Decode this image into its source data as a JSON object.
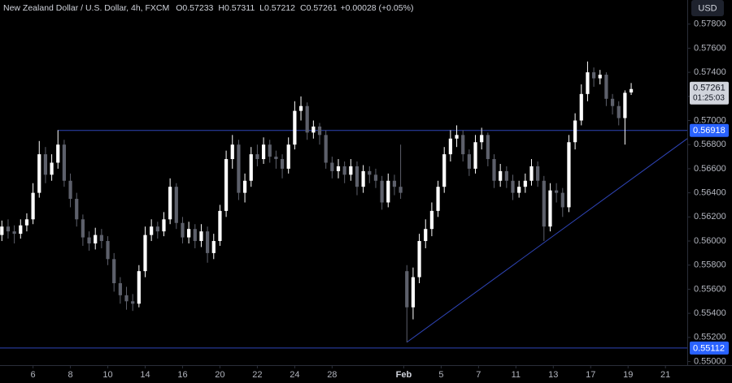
{
  "chart_data": {
    "type": "candlestick",
    "header": {
      "symbol": "New Zealand Dollar / U.S. Dollar, 4h, FXCM",
      "ohlc_keys": [
        "O",
        "H",
        "L",
        "C"
      ],
      "change": "+0.00028 (+0.05%)"
    },
    "currency": "USD",
    "countdown": "01:25:03",
    "up_color": "#ffffff",
    "down_color": "#5d606b",
    "level_color": "#2f45b8",
    "tag_color": "#2962ff",
    "xlim": [
      -0.3,
      110
    ],
    "ylim": [
      0.5497,
      0.58
    ],
    "yticks": [
      {
        "value": 0.55,
        "label": "0.55000"
      },
      {
        "value": 0.552,
        "label": "0.55200"
      },
      {
        "value": 0.554,
        "label": "0.55400"
      },
      {
        "value": 0.556,
        "label": "0.55600"
      },
      {
        "value": 0.558,
        "label": "0.55800"
      },
      {
        "value": 0.56,
        "label": "0.56000"
      },
      {
        "value": 0.562,
        "label": "0.56200"
      },
      {
        "value": 0.564,
        "label": "0.56400"
      },
      {
        "value": 0.566,
        "label": "0.56600"
      },
      {
        "value": 0.568,
        "label": "0.56800"
      },
      {
        "value": 0.57,
        "label": "0.57000"
      },
      {
        "value": 0.572,
        "label": "0.57200"
      },
      {
        "value": 0.574,
        "label": "0.57400"
      },
      {
        "value": 0.576,
        "label": "0.57600"
      },
      {
        "value": 0.578,
        "label": "0.57800"
      }
    ],
    "xticks": [
      {
        "value": 5,
        "label": "6"
      },
      {
        "value": 11,
        "label": "8"
      },
      {
        "value": 17,
        "label": "10"
      },
      {
        "value": 23,
        "label": "14"
      },
      {
        "value": 29,
        "label": "16"
      },
      {
        "value": 35,
        "label": "20"
      },
      {
        "value": 41,
        "label": "22"
      },
      {
        "value": 47,
        "label": "24"
      },
      {
        "value": 53,
        "label": "28"
      },
      {
        "value": 64.5,
        "label": "Feb"
      },
      {
        "value": 70.5,
        "label": "5"
      },
      {
        "value": 76.5,
        "label": "7"
      },
      {
        "value": 82.5,
        "label": "11"
      },
      {
        "value": 88.5,
        "label": "13"
      },
      {
        "value": 94.5,
        "label": "17"
      },
      {
        "value": 100.5,
        "label": "19"
      },
      {
        "value": 106.5,
        "label": "21"
      }
    ],
    "levels": [
      {
        "value": 0.56918,
        "from": 9
      },
      {
        "value": 0.55112,
        "from": -0.3
      }
    ],
    "trendline": {
      "x": [
        65,
        110
      ],
      "y": [
        0.5516,
        0.5685
      ]
    },
    "candles": [
      {
        "o": 0.5605,
        "h": 0.5617,
        "l": 0.56,
        "c": 0.5612
      },
      {
        "o": 0.5612,
        "h": 0.5618,
        "l": 0.5602,
        "c": 0.5608
      },
      {
        "o": 0.5608,
        "h": 0.5613,
        "l": 0.5598,
        "c": 0.5606
      },
      {
        "o": 0.5606,
        "h": 0.5618,
        "l": 0.5602,
        "c": 0.5613
      },
      {
        "o": 0.5613,
        "h": 0.5623,
        "l": 0.5608,
        "c": 0.5618
      },
      {
        "o": 0.5618,
        "h": 0.5648,
        "l": 0.5614,
        "c": 0.564
      },
      {
        "o": 0.564,
        "h": 0.5683,
        "l": 0.5636,
        "c": 0.5672
      },
      {
        "o": 0.5672,
        "h": 0.5678,
        "l": 0.5648,
        "c": 0.5655
      },
      {
        "o": 0.5655,
        "h": 0.5672,
        "l": 0.565,
        "c": 0.5665
      },
      {
        "o": 0.5665,
        "h": 0.5692,
        "l": 0.566,
        "c": 0.568
      },
      {
        "o": 0.568,
        "h": 0.5684,
        "l": 0.5645,
        "c": 0.565
      },
      {
        "o": 0.565,
        "h": 0.5656,
        "l": 0.5628,
        "c": 0.5635
      },
      {
        "o": 0.5635,
        "h": 0.564,
        "l": 0.5612,
        "c": 0.5618
      },
      {
        "o": 0.5618,
        "h": 0.5622,
        "l": 0.5596,
        "c": 0.5603
      },
      {
        "o": 0.5603,
        "h": 0.5608,
        "l": 0.5592,
        "c": 0.5598
      },
      {
        "o": 0.5598,
        "h": 0.5611,
        "l": 0.5593,
        "c": 0.5605
      },
      {
        "o": 0.5605,
        "h": 0.561,
        "l": 0.5594,
        "c": 0.56
      },
      {
        "o": 0.56,
        "h": 0.5604,
        "l": 0.558,
        "c": 0.5585
      },
      {
        "o": 0.5585,
        "h": 0.559,
        "l": 0.5558,
        "c": 0.5565
      },
      {
        "o": 0.5565,
        "h": 0.557,
        "l": 0.5548,
        "c": 0.5555
      },
      {
        "o": 0.5555,
        "h": 0.5562,
        "l": 0.5543,
        "c": 0.555
      },
      {
        "o": 0.555,
        "h": 0.5556,
        "l": 0.5542,
        "c": 0.5548
      },
      {
        "o": 0.5548,
        "h": 0.558,
        "l": 0.5545,
        "c": 0.5575
      },
      {
        "o": 0.5575,
        "h": 0.5612,
        "l": 0.557,
        "c": 0.5605
      },
      {
        "o": 0.5605,
        "h": 0.5618,
        "l": 0.56,
        "c": 0.5612
      },
      {
        "o": 0.5612,
        "h": 0.5616,
        "l": 0.5602,
        "c": 0.5608
      },
      {
        "o": 0.5608,
        "h": 0.5624,
        "l": 0.5604,
        "c": 0.5618
      },
      {
        "o": 0.5618,
        "h": 0.5652,
        "l": 0.5614,
        "c": 0.5645
      },
      {
        "o": 0.5645,
        "h": 0.5648,
        "l": 0.561,
        "c": 0.5615
      },
      {
        "o": 0.5615,
        "h": 0.562,
        "l": 0.5598,
        "c": 0.5603
      },
      {
        "o": 0.5603,
        "h": 0.5616,
        "l": 0.5598,
        "c": 0.561
      },
      {
        "o": 0.561,
        "h": 0.5614,
        "l": 0.5594,
        "c": 0.56
      },
      {
        "o": 0.56,
        "h": 0.5614,
        "l": 0.5595,
        "c": 0.5608
      },
      {
        "o": 0.5608,
        "h": 0.5612,
        "l": 0.5582,
        "c": 0.559
      },
      {
        "o": 0.559,
        "h": 0.5606,
        "l": 0.5585,
        "c": 0.56
      },
      {
        "o": 0.56,
        "h": 0.563,
        "l": 0.5596,
        "c": 0.5625
      },
      {
        "o": 0.5625,
        "h": 0.5675,
        "l": 0.562,
        "c": 0.5668
      },
      {
        "o": 0.5668,
        "h": 0.5688,
        "l": 0.566,
        "c": 0.568
      },
      {
        "o": 0.568,
        "h": 0.5684,
        "l": 0.5634,
        "c": 0.564
      },
      {
        "o": 0.564,
        "h": 0.5656,
        "l": 0.5632,
        "c": 0.565
      },
      {
        "o": 0.565,
        "h": 0.5678,
        "l": 0.5645,
        "c": 0.5672
      },
      {
        "o": 0.5672,
        "h": 0.568,
        "l": 0.5662,
        "c": 0.5668
      },
      {
        "o": 0.5668,
        "h": 0.5686,
        "l": 0.5664,
        "c": 0.568
      },
      {
        "o": 0.568,
        "h": 0.5684,
        "l": 0.5665,
        "c": 0.567
      },
      {
        "o": 0.567,
        "h": 0.5675,
        "l": 0.566,
        "c": 0.5668
      },
      {
        "o": 0.5668,
        "h": 0.5672,
        "l": 0.5652,
        "c": 0.566
      },
      {
        "o": 0.566,
        "h": 0.5686,
        "l": 0.5656,
        "c": 0.568
      },
      {
        "o": 0.568,
        "h": 0.5716,
        "l": 0.5676,
        "c": 0.5708
      },
      {
        "o": 0.5708,
        "h": 0.572,
        "l": 0.57,
        "c": 0.5712
      },
      {
        "o": 0.5712,
        "h": 0.5715,
        "l": 0.5684,
        "c": 0.569
      },
      {
        "o": 0.569,
        "h": 0.57,
        "l": 0.5685,
        "c": 0.5695
      },
      {
        "o": 0.5695,
        "h": 0.5698,
        "l": 0.568,
        "c": 0.5688
      },
      {
        "o": 0.5688,
        "h": 0.5692,
        "l": 0.566,
        "c": 0.5665
      },
      {
        "o": 0.5665,
        "h": 0.567,
        "l": 0.5652,
        "c": 0.5658
      },
      {
        "o": 0.5658,
        "h": 0.5668,
        "l": 0.5652,
        "c": 0.5662
      },
      {
        "o": 0.5662,
        "h": 0.5666,
        "l": 0.5648,
        "c": 0.5655
      },
      {
        "o": 0.5655,
        "h": 0.5668,
        "l": 0.565,
        "c": 0.5662
      },
      {
        "o": 0.5662,
        "h": 0.5666,
        "l": 0.5638,
        "c": 0.5645
      },
      {
        "o": 0.5645,
        "h": 0.5663,
        "l": 0.564,
        "c": 0.5658
      },
      {
        "o": 0.5658,
        "h": 0.5662,
        "l": 0.5648,
        "c": 0.5655
      },
      {
        "o": 0.5655,
        "h": 0.566,
        "l": 0.5644,
        "c": 0.565
      },
      {
        "o": 0.565,
        "h": 0.5654,
        "l": 0.5626,
        "c": 0.5632
      },
      {
        "o": 0.5632,
        "h": 0.5656,
        "l": 0.5628,
        "c": 0.565
      },
      {
        "o": 0.565,
        "h": 0.5655,
        "l": 0.5638,
        "c": 0.5645
      },
      {
        "o": 0.5645,
        "h": 0.568,
        "l": 0.5635,
        "c": 0.564
      },
      {
        "o": 0.5575,
        "h": 0.558,
        "l": 0.5516,
        "c": 0.5545
      },
      {
        "o": 0.5545,
        "h": 0.5578,
        "l": 0.5535,
        "c": 0.557
      },
      {
        "o": 0.557,
        "h": 0.5606,
        "l": 0.5565,
        "c": 0.56
      },
      {
        "o": 0.56,
        "h": 0.5618,
        "l": 0.5594,
        "c": 0.561
      },
      {
        "o": 0.561,
        "h": 0.5632,
        "l": 0.5604,
        "c": 0.5625
      },
      {
        "o": 0.5625,
        "h": 0.565,
        "l": 0.562,
        "c": 0.5645
      },
      {
        "o": 0.5645,
        "h": 0.5678,
        "l": 0.564,
        "c": 0.5672
      },
      {
        "o": 0.5672,
        "h": 0.5692,
        "l": 0.5666,
        "c": 0.5685
      },
      {
        "o": 0.5685,
        "h": 0.5696,
        "l": 0.5678,
        "c": 0.5688
      },
      {
        "o": 0.5688,
        "h": 0.5692,
        "l": 0.5666,
        "c": 0.5672
      },
      {
        "o": 0.5672,
        "h": 0.5676,
        "l": 0.5654,
        "c": 0.566
      },
      {
        "o": 0.566,
        "h": 0.5688,
        "l": 0.5656,
        "c": 0.5682
      },
      {
        "o": 0.5682,
        "h": 0.5694,
        "l": 0.5676,
        "c": 0.5688
      },
      {
        "o": 0.5688,
        "h": 0.569,
        "l": 0.5662,
        "c": 0.5668
      },
      {
        "o": 0.5668,
        "h": 0.5672,
        "l": 0.5644,
        "c": 0.565
      },
      {
        "o": 0.565,
        "h": 0.5664,
        "l": 0.5645,
        "c": 0.5658
      },
      {
        "o": 0.5658,
        "h": 0.5662,
        "l": 0.5644,
        "c": 0.565
      },
      {
        "o": 0.565,
        "h": 0.5655,
        "l": 0.5634,
        "c": 0.564
      },
      {
        "o": 0.564,
        "h": 0.565,
        "l": 0.5636,
        "c": 0.5645
      },
      {
        "o": 0.5645,
        "h": 0.5656,
        "l": 0.564,
        "c": 0.565
      },
      {
        "o": 0.565,
        "h": 0.5668,
        "l": 0.5646,
        "c": 0.5662
      },
      {
        "o": 0.5662,
        "h": 0.5666,
        "l": 0.5645,
        "c": 0.565
      },
      {
        "o": 0.565,
        "h": 0.5654,
        "l": 0.56,
        "c": 0.5612
      },
      {
        "o": 0.5612,
        "h": 0.5648,
        "l": 0.5608,
        "c": 0.5642
      },
      {
        "o": 0.5642,
        "h": 0.5648,
        "l": 0.5632,
        "c": 0.564
      },
      {
        "o": 0.564,
        "h": 0.5644,
        "l": 0.562,
        "c": 0.5628
      },
      {
        "o": 0.5628,
        "h": 0.5688,
        "l": 0.5624,
        "c": 0.5682
      },
      {
        "o": 0.5682,
        "h": 0.5706,
        "l": 0.5676,
        "c": 0.57
      },
      {
        "o": 0.57,
        "h": 0.573,
        "l": 0.5696,
        "c": 0.5722
      },
      {
        "o": 0.5722,
        "h": 0.5749,
        "l": 0.5716,
        "c": 0.574
      },
      {
        "o": 0.574,
        "h": 0.5744,
        "l": 0.5728,
        "c": 0.5735
      },
      {
        "o": 0.5735,
        "h": 0.5742,
        "l": 0.573,
        "c": 0.5738
      },
      {
        "o": 0.5738,
        "h": 0.574,
        "l": 0.5712,
        "c": 0.5718
      },
      {
        "o": 0.5718,
        "h": 0.5722,
        "l": 0.5705,
        "c": 0.5712
      },
      {
        "o": 0.5712,
        "h": 0.5716,
        "l": 0.5696,
        "c": 0.5702
      },
      {
        "o": 0.5702,
        "h": 0.5725,
        "l": 0.568,
        "c": 0.5723
      },
      {
        "o": 0.57233,
        "h": 0.57311,
        "l": 0.57212,
        "c": 0.57261
      }
    ]
  }
}
